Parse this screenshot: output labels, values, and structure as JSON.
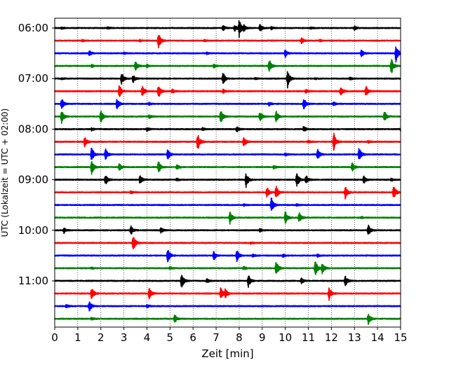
{
  "chart_data": {
    "type": "line",
    "title": "",
    "xlabel": "Zeit  [min]",
    "ylabel": "UTC (Lokalzeit = UTC + 02:00)",
    "xlim": [
      0,
      15
    ],
    "x_ticks": [
      0,
      1,
      2,
      3,
      4,
      5,
      6,
      7,
      8,
      9,
      10,
      11,
      12,
      13,
      14,
      15
    ],
    "y_tick_labels": [
      "06:00",
      "07:00",
      "08:00",
      "09:00",
      "10:00",
      "11:00"
    ],
    "grid_x": true,
    "trace_colors": [
      "#000000",
      "#ff0000",
      "#0000ff",
      "#008000"
    ],
    "traces": [
      {
        "label": "06:00",
        "events": [
          [
            0.3,
            0.1
          ],
          [
            2.3,
            0.1
          ],
          [
            7.3,
            0.3
          ],
          [
            7.8,
            0.4
          ],
          [
            8.0,
            1.0
          ],
          [
            8.2,
            0.3
          ],
          [
            8.9,
            0.4
          ],
          [
            9.4,
            0.15
          ],
          [
            11.1,
            0.1
          ],
          [
            13.0,
            0.2
          ]
        ]
      },
      {
        "label": "",
        "events": [
          [
            1.2,
            0.1
          ],
          [
            3.7,
            0.1
          ],
          [
            4.5,
            0.9
          ],
          [
            6.5,
            0.1
          ],
          [
            10.7,
            0.3
          ],
          [
            11.5,
            0.1
          ]
        ]
      },
      {
        "label": "",
        "events": [
          [
            1.5,
            0.3
          ],
          [
            3.0,
            0.1
          ],
          [
            6.6,
            0.1
          ],
          [
            10.0,
            0.4
          ],
          [
            13.3,
            0.4
          ],
          [
            14.8,
            1.0
          ]
        ]
      },
      {
        "label": "",
        "events": [
          [
            1.6,
            0.15
          ],
          [
            3.5,
            0.5
          ],
          [
            4.0,
            0.15
          ],
          [
            6.9,
            0.2
          ],
          [
            9.3,
            0.7
          ],
          [
            14.6,
            0.9
          ]
        ]
      },
      {
        "label": "07:00",
        "events": [
          [
            0.3,
            0.1
          ],
          [
            2.9,
            0.7
          ],
          [
            3.4,
            0.4
          ],
          [
            7.3,
            0.7
          ],
          [
            8.7,
            0.1
          ],
          [
            10.1,
            1.0
          ],
          [
            11.3,
            0.1
          ],
          [
            12.8,
            0.15
          ]
        ]
      },
      {
        "label": "",
        "events": [
          [
            2.8,
            0.7
          ],
          [
            3.8,
            0.6
          ],
          [
            4.5,
            0.8
          ],
          [
            5.1,
            0.2
          ],
          [
            7.3,
            0.2
          ],
          [
            10.9,
            0.2
          ],
          [
            12.4,
            0.5
          ],
          [
            13.5,
            0.6
          ]
        ]
      },
      {
        "label": "",
        "events": [
          [
            0.3,
            0.6
          ],
          [
            2.7,
            0.6
          ],
          [
            4.1,
            0.15
          ],
          [
            9.3,
            0.2
          ],
          [
            10.8,
            0.7
          ],
          [
            12.1,
            0.2
          ]
        ]
      },
      {
        "label": "",
        "events": [
          [
            0.3,
            0.7
          ],
          [
            2.0,
            0.7
          ],
          [
            4.1,
            0.2
          ],
          [
            7.2,
            0.8
          ],
          [
            8.9,
            0.6
          ],
          [
            9.6,
            0.6
          ],
          [
            14.3,
            0.6
          ]
        ]
      },
      {
        "label": "08:00",
        "events": [
          [
            1.6,
            0.15
          ],
          [
            4.0,
            0.2
          ],
          [
            6.4,
            0.15
          ],
          [
            7.9,
            0.3
          ],
          [
            10.8,
            0.3
          ],
          [
            15.0,
            0.15
          ]
        ]
      },
      {
        "label": "",
        "events": [
          [
            1.3,
            0.6
          ],
          [
            6.2,
            1.0
          ],
          [
            8.2,
            0.6
          ],
          [
            11.0,
            0.15
          ],
          [
            12.1,
            1.0
          ],
          [
            13.6,
            0.15
          ]
        ]
      },
      {
        "label": "",
        "events": [
          [
            1.6,
            0.8
          ],
          [
            2.2,
            0.7
          ],
          [
            4.9,
            0.6
          ],
          [
            10.0,
            0.15
          ],
          [
            11.4,
            0.6
          ],
          [
            13.2,
            0.8
          ]
        ]
      },
      {
        "label": "",
        "events": [
          [
            1.6,
            0.8
          ],
          [
            2.8,
            0.4
          ],
          [
            4.5,
            0.7
          ],
          [
            5.3,
            0.3
          ],
          [
            9.5,
            0.2
          ],
          [
            12.9,
            0.5
          ]
        ]
      },
      {
        "label": "09:00",
        "events": [
          [
            2.2,
            0.6
          ],
          [
            3.7,
            0.5
          ],
          [
            5.3,
            0.15
          ],
          [
            8.3,
            0.8
          ],
          [
            10.5,
            0.8
          ],
          [
            10.9,
            0.5
          ],
          [
            13.4,
            0.4
          ],
          [
            14.6,
            0.15
          ]
        ]
      },
      {
        "label": "",
        "events": [
          [
            3.3,
            0.15
          ],
          [
            9.2,
            0.6
          ],
          [
            9.6,
            0.8
          ],
          [
            12.6,
            0.7
          ],
          [
            14.7,
            0.8
          ]
        ]
      },
      {
        "label": "",
        "events": [
          [
            8.2,
            0.1
          ],
          [
            9.4,
            0.9
          ],
          [
            10.5,
            0.1
          ]
        ]
      },
      {
        "label": "",
        "events": [
          [
            7.6,
            0.7
          ],
          [
            10.0,
            0.7
          ],
          [
            10.6,
            0.6
          ],
          [
            13.3,
            0.1
          ]
        ]
      },
      {
        "label": "10:00",
        "events": [
          [
            0.4,
            0.3
          ],
          [
            3.3,
            0.5
          ],
          [
            4.6,
            0.3
          ],
          [
            8.9,
            0.2
          ],
          [
            13.6,
            0.6
          ]
        ]
      },
      {
        "label": "",
        "events": [
          [
            3.4,
            1.0
          ],
          [
            8.5,
            0.1
          ]
        ]
      },
      {
        "label": "",
        "events": [
          [
            4.9,
            0.9
          ],
          [
            6.9,
            0.5
          ],
          [
            7.9,
            0.7
          ],
          [
            8.6,
            0.15
          ],
          [
            9.9,
            0.15
          ],
          [
            11.4,
            0.15
          ]
        ]
      },
      {
        "label": "",
        "events": [
          [
            1.6,
            0.1
          ],
          [
            5.0,
            0.15
          ],
          [
            8.2,
            0.2
          ],
          [
            9.6,
            0.9
          ],
          [
            11.3,
            0.9
          ],
          [
            11.6,
            0.6
          ]
        ]
      },
      {
        "label": "11:00",
        "events": [
          [
            5.5,
            0.9
          ],
          [
            6.6,
            0.2
          ],
          [
            8.4,
            0.7
          ],
          [
            10.7,
            0.3
          ],
          [
            12.6,
            0.6
          ]
        ]
      },
      {
        "label": "",
        "events": [
          [
            1.6,
            0.7
          ],
          [
            4.1,
            0.6
          ],
          [
            7.2,
            0.7
          ],
          [
            7.4,
            0.5
          ],
          [
            11.9,
            0.7
          ]
        ]
      },
      {
        "label": "",
        "events": [
          [
            0.5,
            0.2
          ],
          [
            1.5,
            0.6
          ],
          [
            4.0,
            0.15
          ]
        ]
      },
      {
        "label": "",
        "events": [
          [
            1.6,
            0.15
          ],
          [
            5.2,
            0.5
          ],
          [
            13.6,
            0.6
          ]
        ]
      }
    ]
  }
}
